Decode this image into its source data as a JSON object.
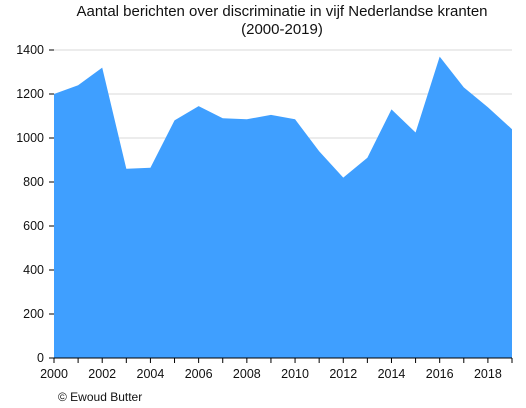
{
  "chart_data": {
    "type": "area",
    "title_line1": "Aantal berichten over discriminatie in vijf Nederlandse kranten",
    "title_line2": "(2000-2019)",
    "credit": "© Ewoud Butter",
    "x": [
      2000,
      2001,
      2002,
      2003,
      2004,
      2005,
      2006,
      2007,
      2008,
      2009,
      2010,
      2011,
      2012,
      2013,
      2014,
      2015,
      2016,
      2017,
      2018,
      2019
    ],
    "series": [
      {
        "values": [
          1200,
          1240,
          1320,
          860,
          865,
          1080,
          1145,
          1090,
          1085,
          1105,
          1085,
          940,
          820,
          910,
          1130,
          1025,
          1370,
          1230,
          1140,
          1040
        ]
      }
    ],
    "x_ticks": [
      2000,
      2002,
      2004,
      2006,
      2008,
      2010,
      2012,
      2014,
      2016,
      2018
    ],
    "y_ticks": [
      0,
      200,
      400,
      600,
      800,
      1000,
      1200,
      1400
    ],
    "xlim": [
      2000,
      2019
    ],
    "ylim": [
      0,
      1400
    ],
    "grid": true,
    "fill_color": "#3f9fff"
  }
}
